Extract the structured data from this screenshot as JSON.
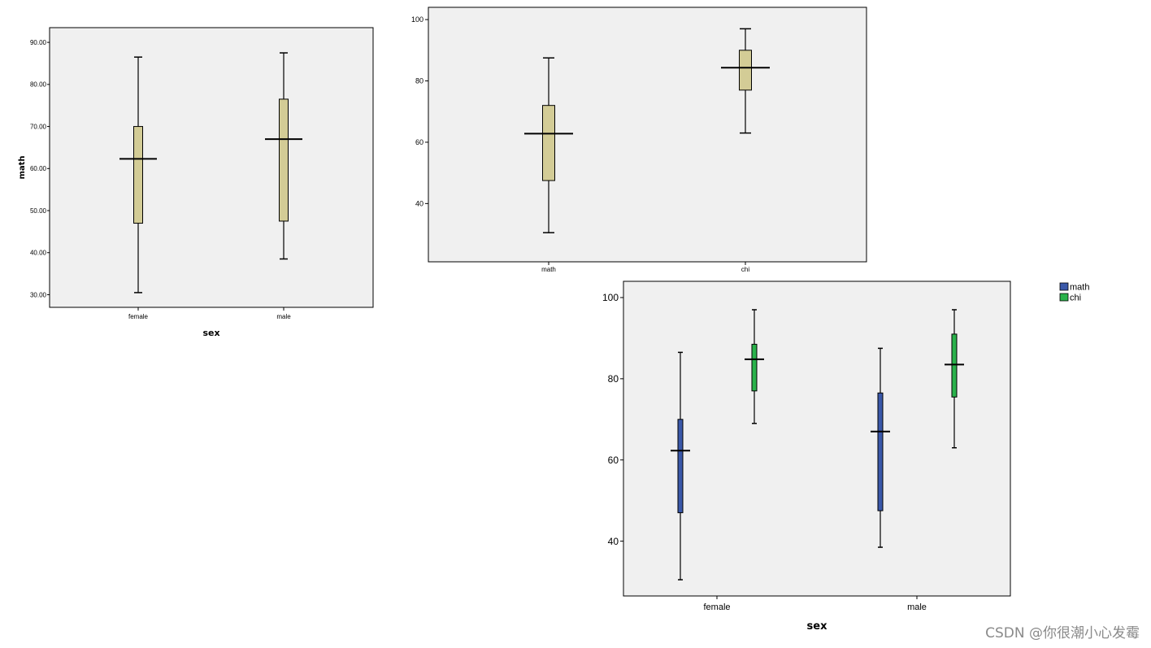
{
  "chart_data": [
    {
      "type": "boxplot",
      "xlabel": "sex",
      "ylabel": "math",
      "categories": [
        "female",
        "male"
      ],
      "y_ticks": [
        "30.00",
        "40.00",
        "50.00",
        "60.00",
        "70.00",
        "80.00",
        "90.00"
      ],
      "ylim": [
        27,
        93.5
      ],
      "box_color": "#d3cc96",
      "boxes": [
        {
          "category": "female",
          "min": 30.5,
          "q1": 47,
          "median": 62.3,
          "q3": 70,
          "max": 86.5
        },
        {
          "category": "male",
          "min": 38.5,
          "q1": 47.5,
          "median": 67,
          "q3": 76.5,
          "max": 87.5
        }
      ]
    },
    {
      "type": "boxplot",
      "xlabel": "",
      "ylabel": "",
      "categories": [
        "math",
        "chi"
      ],
      "y_ticks": [
        "40",
        "60",
        "80",
        "100"
      ],
      "ylim": [
        21,
        104
      ],
      "box_color": "#d3cc96",
      "boxes": [
        {
          "category": "math",
          "min": 30.5,
          "q1": 47.5,
          "median": 62.8,
          "q3": 72,
          "max": 87.5
        },
        {
          "category": "chi",
          "min": 63,
          "q1": 77,
          "median": 84.3,
          "q3": 90,
          "max": 97
        }
      ]
    },
    {
      "type": "boxplot",
      "xlabel": "sex",
      "ylabel": "",
      "categories": [
        "female",
        "male"
      ],
      "y_ticks": [
        "40",
        "60",
        "80",
        "100"
      ],
      "ylim": [
        26.5,
        104
      ],
      "legend": {
        "position": "top-right",
        "entries": [
          "math",
          "chi"
        ]
      },
      "series_colors": {
        "math": "#3a58a9",
        "chi": "#2ab24b"
      },
      "boxes": [
        {
          "category": "female",
          "series": "math",
          "min": 30.5,
          "q1": 47,
          "median": 62.3,
          "q3": 70,
          "max": 86.5
        },
        {
          "category": "female",
          "series": "chi",
          "min": 69,
          "q1": 77,
          "median": 84.8,
          "q3": 88.5,
          "max": 97
        },
        {
          "category": "male",
          "series": "math",
          "min": 38.5,
          "q1": 47.5,
          "median": 67,
          "q3": 76.5,
          "max": 87.5
        },
        {
          "category": "male",
          "series": "chi",
          "min": 63,
          "q1": 75.5,
          "median": 83.5,
          "q3": 91,
          "max": 97
        }
      ]
    }
  ],
  "watermark": "CSDN @你很潮小心发霉"
}
